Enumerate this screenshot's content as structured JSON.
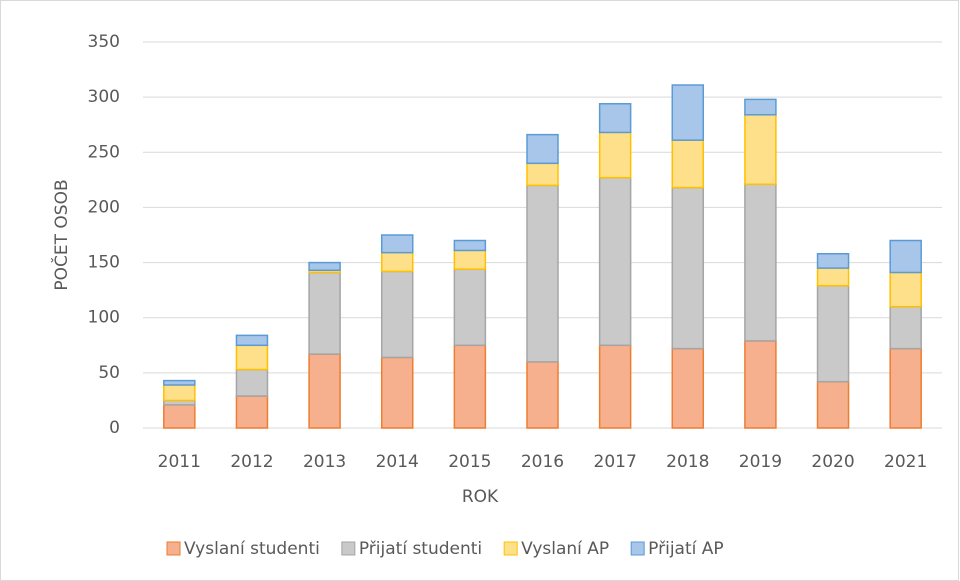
{
  "chart_data": {
    "type": "stacked_bar",
    "x_label": "ROK",
    "y_label": "POČET OSOB",
    "categories": [
      "2011",
      "2012",
      "2013",
      "2014",
      "2015",
      "2016",
      "2017",
      "2018",
      "2019",
      "2020",
      "2021"
    ],
    "series": [
      {
        "name": "Vyslaní studenti",
        "color": "#ed7d31",
        "fill": "#f6b08e",
        "values": [
          21,
          29,
          67,
          64,
          75,
          60,
          75,
          72,
          79,
          42,
          72
        ]
      },
      {
        "name": "Přijatí studenti",
        "color": "#a5a5a5",
        "fill": "#c9c9c9",
        "values": [
          4,
          24,
          74,
          78,
          69,
          160,
          152,
          146,
          142,
          87,
          38
        ]
      },
      {
        "name": "Vyslaní AP",
        "color": "#ffc000",
        "fill": "#ffe08a",
        "values": [
          14,
          22,
          2,
          17,
          17,
          20,
          41,
          43,
          63,
          16,
          31
        ]
      },
      {
        "name": "Přijatí AP",
        "color": "#5b9bd5",
        "fill": "#a7c6ea",
        "values": [
          4,
          9,
          7,
          16,
          9,
          26,
          26,
          50,
          14,
          13,
          29
        ]
      }
    ],
    "ylim": [
      0,
      350
    ],
    "yticks": [
      0,
      50,
      100,
      150,
      200,
      250,
      300,
      350
    ],
    "grid": true,
    "legend": "bottom"
  }
}
